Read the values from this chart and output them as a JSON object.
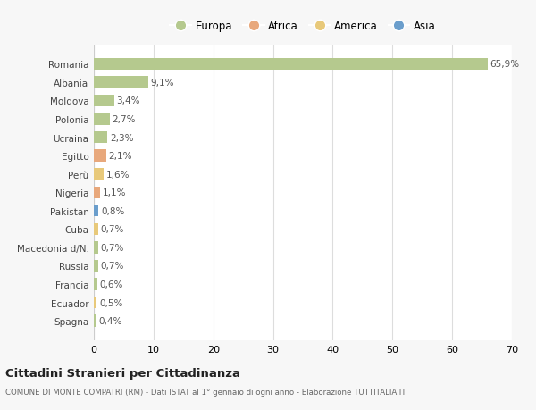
{
  "countries": [
    "Romania",
    "Albania",
    "Moldova",
    "Polonia",
    "Ucraina",
    "Egitto",
    "Perù",
    "Nigeria",
    "Pakistan",
    "Cuba",
    "Macedonia d/N.",
    "Russia",
    "Francia",
    "Ecuador",
    "Spagna"
  ],
  "values": [
    65.9,
    9.1,
    3.4,
    2.7,
    2.3,
    2.1,
    1.6,
    1.1,
    0.8,
    0.7,
    0.7,
    0.7,
    0.6,
    0.5,
    0.4
  ],
  "labels": [
    "65,9%",
    "9,1%",
    "3,4%",
    "2,7%",
    "2,3%",
    "2,1%",
    "1,6%",
    "1,1%",
    "0,8%",
    "0,7%",
    "0,7%",
    "0,7%",
    "0,6%",
    "0,5%",
    "0,4%"
  ],
  "colors": [
    "#b5c98e",
    "#b5c98e",
    "#b5c98e",
    "#b5c98e",
    "#b5c98e",
    "#e8a87c",
    "#e8c97a",
    "#e8a87c",
    "#6b9ecc",
    "#e8c97a",
    "#b5c98e",
    "#b5c98e",
    "#b5c98e",
    "#e8c97a",
    "#b5c98e"
  ],
  "legend_labels": [
    "Europa",
    "Africa",
    "America",
    "Asia"
  ],
  "legend_colors": [
    "#b5c98e",
    "#e8a87c",
    "#e8c97a",
    "#6b9ecc"
  ],
  "title": "Cittadini Stranieri per Cittadinanza",
  "subtitle": "COMUNE DI MONTE COMPATRI (RM) - Dati ISTAT al 1° gennaio di ogni anno - Elaborazione TUTTITALIA.IT",
  "xlim": [
    0,
    70
  ],
  "xticks": [
    0,
    10,
    20,
    30,
    40,
    50,
    60,
    70
  ],
  "background_color": "#f7f7f7",
  "bar_background": "#ffffff"
}
